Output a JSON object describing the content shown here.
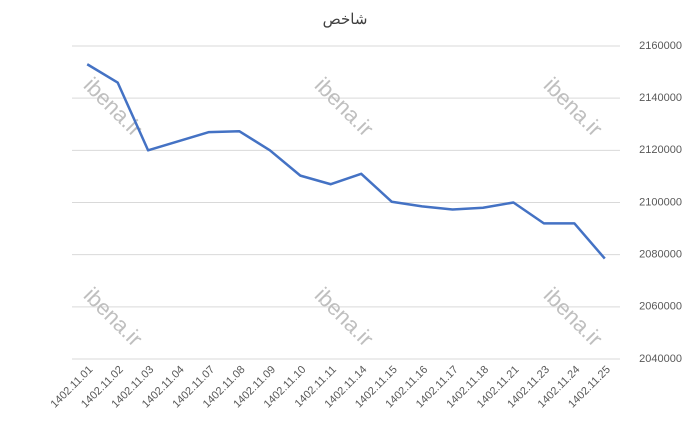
{
  "chart_data": {
    "type": "line",
    "title": "شاخص",
    "watermark": "ibena.ir",
    "categories": [
      "1402.11.01",
      "1402.11.02",
      "1402.11.03",
      "1402.11.04",
      "1402.11.07",
      "1402.11.08",
      "1402.11.09",
      "1402.11.10",
      "1402.11.11",
      "1402.11.14",
      "1402.11.15",
      "1402.11.16",
      "1402.11.17",
      "1402.11.18",
      "1402.11.21",
      "1402.11.23",
      "1402.11.24",
      "1402.11.25"
    ],
    "values": [
      2153000,
      2146000,
      2120000,
      2123500,
      2127000,
      2127300,
      2120000,
      2110300,
      2107000,
      2111000,
      2100300,
      2098500,
      2097300,
      2098000,
      2100000,
      2092000,
      2092000,
      2078500
    ],
    "color": "#4472c4",
    "ylim": [
      2040000,
      2160000
    ],
    "yticks": [
      2040000,
      2060000,
      2080000,
      2100000,
      2120000,
      2140000,
      2160000
    ],
    "grid": true
  }
}
